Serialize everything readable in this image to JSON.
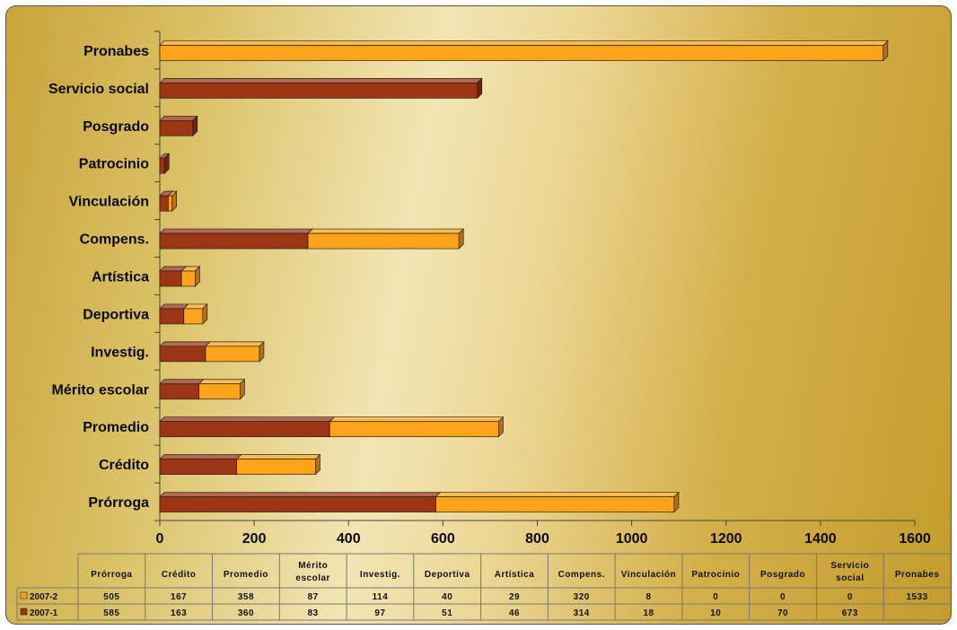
{
  "chart_data": {
    "type": "bar",
    "orientation": "horizontal",
    "stacked": true,
    "style": "3d",
    "categories": [
      "Prórroga",
      "Crédito",
      "Promedio",
      "Mérito escolar",
      "Investig.",
      "Deportiva",
      "Artística",
      "Compens.",
      "Vinculación",
      "Patrocinio",
      "Posgrado",
      "Servicio social",
      "Pronabes"
    ],
    "series": [
      {
        "name": "2007-1",
        "color": "#9b3514",
        "values": [
          585,
          163,
          360,
          83,
          97,
          51,
          46,
          314,
          18,
          10,
          70,
          673,
          null
        ]
      },
      {
        "name": "2007-2",
        "color": "#ffa31a",
        "values": [
          505,
          167,
          358,
          87,
          114,
          40,
          29,
          320,
          8,
          0,
          0,
          0,
          1533
        ]
      }
    ],
    "xlim": [
      0,
      1600
    ],
    "xticks": [
      0,
      200,
      400,
      600,
      800,
      1000,
      1200,
      1400,
      1600
    ],
    "data_table": true,
    "legend_placement": "data-table"
  }
}
